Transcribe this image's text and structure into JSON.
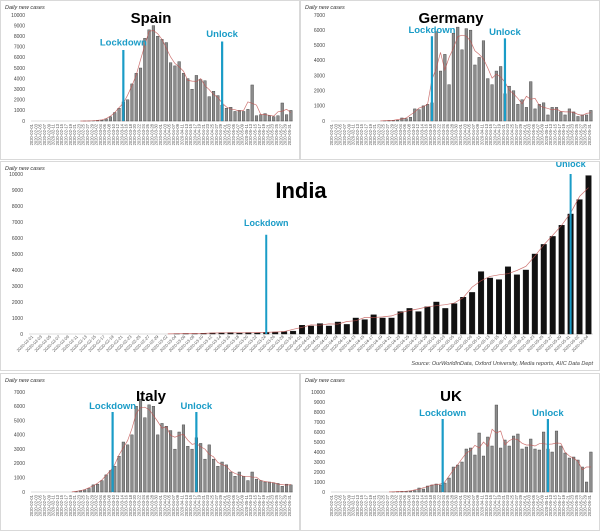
{
  "source": "Source: OurWorldInData, Oxford University, Media reports, AIIC Data Dept",
  "colors": {
    "bar": "#3a3a3a",
    "bar_fill": "#ffffff",
    "trend": "#c0504d",
    "event": "#1a9cc7"
  },
  "chart_data": [
    {
      "type": "bar",
      "title": "Spain",
      "ylabel": "Daily new cases",
      "ylim": [
        0,
        10000
      ],
      "grid": false,
      "events": [
        {
          "label": "Lockdown",
          "date": "2020-03-14"
        },
        {
          "label": "Unlock",
          "date": "2020-04-29"
        }
      ],
      "x": [
        "2020-02-01",
        "2020-02-03",
        "2020-02-05",
        "2020-02-07",
        "2020-02-09",
        "2020-02-11",
        "2020-02-13",
        "2020-02-15",
        "2020-02-17",
        "2020-02-19",
        "2020-02-21",
        "2020-02-23",
        "2020-02-25",
        "2020-02-27",
        "2020-02-29",
        "2020-03-02",
        "2020-03-04",
        "2020-03-06",
        "2020-03-08",
        "2020-03-10",
        "2020-03-12",
        "2020-03-14",
        "2020-03-16",
        "2020-03-18",
        "2020-03-20",
        "2020-03-22",
        "2020-03-24",
        "2020-03-26",
        "2020-03-28",
        "2020-03-30",
        "2020-04-01",
        "2020-04-03",
        "2020-04-05",
        "2020-04-07",
        "2020-04-09",
        "2020-04-11",
        "2020-04-13",
        "2020-04-15",
        "2020-04-17",
        "2020-04-19",
        "2020-04-21",
        "2020-04-23",
        "2020-04-25",
        "2020-04-27",
        "2020-04-29",
        "2020-05-01",
        "2020-05-03",
        "2020-05-05",
        "2020-05-07",
        "2020-05-09",
        "2020-05-11",
        "2020-05-13",
        "2020-05-15",
        "2020-05-17",
        "2020-05-19",
        "2020-05-21",
        "2020-05-23",
        "2020-05-25",
        "2020-05-27",
        "2020-05-29",
        "2020-05-31"
      ],
      "values": [
        0,
        0,
        0,
        0,
        0,
        0,
        0,
        0,
        0,
        0,
        0,
        0,
        2,
        10,
        30,
        50,
        80,
        200,
        400,
        800,
        1200,
        1800,
        2000,
        3500,
        4500,
        5000,
        7800,
        8600,
        9000,
        8000,
        7700,
        7400,
        5500,
        5200,
        5600,
        4500,
        4000,
        3000,
        4300,
        3900,
        3800,
        2300,
        2800,
        2400,
        1500,
        1200,
        1300,
        900,
        1000,
        900,
        1100,
        3400,
        500,
        600,
        700,
        500,
        400,
        500,
        1700,
        600,
        1000
      ]
    },
    {
      "type": "bar",
      "title": "Germany",
      "ylabel": "Daily new cases",
      "ylim": [
        0,
        7000
      ],
      "grid": false,
      "events": [
        {
          "label": "Lockdown",
          "date": "2020-03-18"
        },
        {
          "label": "Unlock",
          "date": "2020-04-21"
        }
      ],
      "x": [
        "2020-02-01",
        "2020-02-03",
        "2020-02-05",
        "2020-02-07",
        "2020-02-09",
        "2020-02-11",
        "2020-02-13",
        "2020-02-15",
        "2020-02-17",
        "2020-02-19",
        "2020-02-21",
        "2020-02-23",
        "2020-02-25",
        "2020-02-27",
        "2020-02-29",
        "2020-03-02",
        "2020-03-04",
        "2020-03-06",
        "2020-03-08",
        "2020-03-10",
        "2020-03-12",
        "2020-03-14",
        "2020-03-16",
        "2020-03-18",
        "2020-03-20",
        "2020-03-22",
        "2020-03-24",
        "2020-03-26",
        "2020-03-28",
        "2020-03-30",
        "2020-04-01",
        "2020-04-03",
        "2020-04-05",
        "2020-04-07",
        "2020-04-09",
        "2020-04-11",
        "2020-04-13",
        "2020-04-15",
        "2020-04-17",
        "2020-04-19",
        "2020-04-21",
        "2020-04-23",
        "2020-04-25",
        "2020-04-27",
        "2020-04-29",
        "2020-05-01",
        "2020-05-03",
        "2020-05-05",
        "2020-05-07",
        "2020-05-09",
        "2020-05-11",
        "2020-05-13",
        "2020-05-15",
        "2020-05-17",
        "2020-05-19",
        "2020-05-21",
        "2020-05-23",
        "2020-05-25",
        "2020-05-27",
        "2020-05-29",
        "2020-05-31"
      ],
      "values": [
        0,
        0,
        0,
        0,
        0,
        0,
        0,
        0,
        0,
        0,
        0,
        0,
        20,
        30,
        50,
        40,
        200,
        150,
        250,
        800,
        750,
        1000,
        1100,
        1200,
        5900,
        3300,
        4400,
        2400,
        5800,
        6200,
        4700,
        6100,
        6000,
        3700,
        4200,
        5300,
        2800,
        2400,
        3300,
        3600,
        1800,
        2300,
        2000,
        1100,
        1400,
        900,
        2600,
        800,
        1100,
        1200,
        400,
        900,
        900,
        600,
        400,
        800,
        600,
        300,
        400,
        400,
        700
      ]
    },
    {
      "type": "bar",
      "title": "India",
      "ylabel": "Daily new cases",
      "ylim": [
        0,
        10000
      ],
      "grid": false,
      "events": [
        {
          "label": "Lockdown",
          "date": "2020-03-24"
        },
        {
          "label": "Unlock",
          "date": "2020-05-31"
        }
      ],
      "x": [
        "2020-02-01",
        "2020-02-03",
        "2020-02-05",
        "2020-02-07",
        "2020-02-09",
        "2020-02-11",
        "2020-02-13",
        "2020-02-15",
        "2020-02-17",
        "2020-02-19",
        "2020-02-21",
        "2020-02-23",
        "2020-02-25",
        "2020-02-27",
        "2020-02-29",
        "2020-03-02",
        "2020-03-04",
        "2020-03-06",
        "2020-03-08",
        "2020-03-10",
        "2020-03-12",
        "2020-03-14",
        "2020-03-16",
        "2020-03-18",
        "2020-03-20",
        "2020-03-22",
        "2020-03-24",
        "2020-03-26",
        "2020-03-28",
        "2020-03-30",
        "2020-04-01",
        "2020-04-03",
        "2020-04-05",
        "2020-04-07",
        "2020-04-09",
        "2020-04-11",
        "2020-04-13",
        "2020-04-15",
        "2020-04-17",
        "2020-04-19",
        "2020-04-21",
        "2020-04-23",
        "2020-04-25",
        "2020-04-27",
        "2020-04-29",
        "2020-05-01",
        "2020-05-03",
        "2020-05-05",
        "2020-05-07",
        "2020-05-09",
        "2020-05-11",
        "2020-05-13",
        "2020-05-15",
        "2020-05-17",
        "2020-05-19",
        "2020-05-21",
        "2020-05-23",
        "2020-05-25",
        "2020-05-27",
        "2020-05-29",
        "2020-05-31",
        "2020-06-02",
        "2020-06-04"
      ],
      "values": [
        0,
        0,
        0,
        0,
        0,
        0,
        0,
        0,
        0,
        0,
        0,
        0,
        0,
        0,
        0,
        0,
        20,
        30,
        20,
        40,
        60,
        80,
        90,
        60,
        90,
        80,
        100,
        120,
        150,
        180,
        550,
        500,
        650,
        500,
        750,
        600,
        1000,
        900,
        1200,
        1000,
        1000,
        1400,
        1600,
        1400,
        1700,
        2000,
        1600,
        1900,
        2300,
        2600,
        3900,
        3500,
        3400,
        4200,
        3700,
        4000,
        5000,
        5600,
        6100,
        6800,
        7500,
        8400,
        9900
      ]
    },
    {
      "type": "bar",
      "title": "Italy",
      "ylabel": "Daily new cases",
      "ylim": [
        0,
        7000
      ],
      "grid": false,
      "events": [
        {
          "label": "Lockdown",
          "date": "2020-03-09"
        },
        {
          "label": "Unlock",
          "date": "2020-04-17"
        }
      ],
      "x": [
        "2020-02-01",
        "2020-02-03",
        "2020-02-05",
        "2020-02-07",
        "2020-02-09",
        "2020-02-11",
        "2020-02-13",
        "2020-02-15",
        "2020-02-17",
        "2020-02-19",
        "2020-02-21",
        "2020-02-23",
        "2020-02-25",
        "2020-02-27",
        "2020-02-29",
        "2020-03-02",
        "2020-03-04",
        "2020-03-06",
        "2020-03-08",
        "2020-03-10",
        "2020-03-12",
        "2020-03-14",
        "2020-03-16",
        "2020-03-18",
        "2020-03-20",
        "2020-03-22",
        "2020-03-24",
        "2020-03-26",
        "2020-03-28",
        "2020-03-30",
        "2020-04-01",
        "2020-04-03",
        "2020-04-05",
        "2020-04-07",
        "2020-04-09",
        "2020-04-11",
        "2020-04-13",
        "2020-04-15",
        "2020-04-17",
        "2020-04-19",
        "2020-04-21",
        "2020-04-23",
        "2020-04-25",
        "2020-04-27",
        "2020-04-29",
        "2020-05-01",
        "2020-05-03",
        "2020-05-05",
        "2020-05-07",
        "2020-05-09",
        "2020-05-11",
        "2020-05-13",
        "2020-05-15",
        "2020-05-17",
        "2020-05-19",
        "2020-05-21",
        "2020-05-23",
        "2020-05-25",
        "2020-05-27",
        "2020-05-29",
        "2020-05-31"
      ],
      "values": [
        0,
        0,
        0,
        0,
        0,
        0,
        0,
        0,
        0,
        0,
        20,
        100,
        150,
        250,
        500,
        550,
        800,
        1200,
        1500,
        1800,
        2500,
        3500,
        3300,
        4000,
        6000,
        6500,
        5200,
        6100,
        6000,
        4000,
        4800,
        4600,
        4300,
        3000,
        4200,
        4700,
        3200,
        3000,
        3800,
        3400,
        2300,
        3300,
        2300,
        1800,
        2100,
        1900,
        1400,
        1100,
        1400,
        1100,
        800,
        1400,
        900,
        800,
        700,
        700,
        650,
        600,
        400,
        550,
        500
      ]
    },
    {
      "type": "bar",
      "title": "UK",
      "ylabel": "Daily new cases",
      "ylim": [
        0,
        10000
      ],
      "grid": false,
      "events": [
        {
          "label": "Lockdown",
          "date": "2020-03-23"
        },
        {
          "label": "Unlock",
          "date": "2020-05-11"
        }
      ],
      "x": [
        "2020-02-01",
        "2020-02-03",
        "2020-02-05",
        "2020-02-07",
        "2020-02-09",
        "2020-02-11",
        "2020-02-13",
        "2020-02-15",
        "2020-02-17",
        "2020-02-19",
        "2020-02-21",
        "2020-02-23",
        "2020-02-25",
        "2020-02-27",
        "2020-02-29",
        "2020-03-02",
        "2020-03-04",
        "2020-03-06",
        "2020-03-08",
        "2020-03-10",
        "2020-03-12",
        "2020-03-14",
        "2020-03-16",
        "2020-03-18",
        "2020-03-20",
        "2020-03-22",
        "2020-03-24",
        "2020-03-26",
        "2020-03-28",
        "2020-03-30",
        "2020-04-01",
        "2020-04-03",
        "2020-04-05",
        "2020-04-07",
        "2020-04-09",
        "2020-04-11",
        "2020-04-13",
        "2020-04-15",
        "2020-04-17",
        "2020-04-19",
        "2020-04-21",
        "2020-04-23",
        "2020-04-25",
        "2020-04-27",
        "2020-04-29",
        "2020-05-01",
        "2020-05-03",
        "2020-05-05",
        "2020-05-07",
        "2020-05-09",
        "2020-05-11",
        "2020-05-13",
        "2020-05-15",
        "2020-05-17",
        "2020-05-19",
        "2020-05-21",
        "2020-05-23",
        "2020-05-25",
        "2020-05-27",
        "2020-05-29",
        "2020-05-31"
      ],
      "values": [
        0,
        0,
        0,
        0,
        0,
        0,
        0,
        0,
        0,
        0,
        0,
        0,
        0,
        0,
        20,
        40,
        50,
        80,
        100,
        150,
        400,
        300,
        600,
        700,
        800,
        700,
        900,
        1400,
        2500,
        2700,
        3000,
        4300,
        4400,
        3700,
        5900,
        3600,
        5500,
        4600,
        8700,
        4400,
        5200,
        4600,
        5600,
        5800,
        4300,
        4500,
        5300,
        4300,
        4200,
        6000,
        4300,
        4000,
        6100,
        4600,
        3900,
        3400,
        3500,
        3200,
        2500,
        1000,
        4000
      ]
    }
  ]
}
